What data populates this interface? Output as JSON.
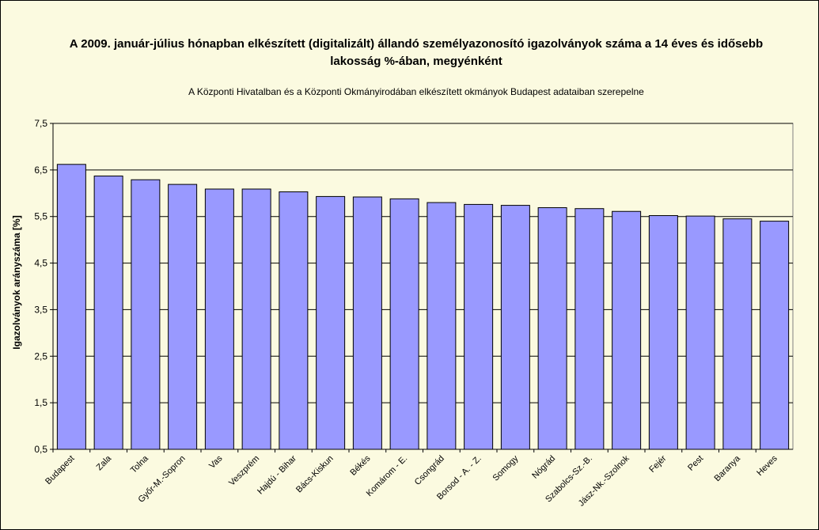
{
  "title": "A 2009. január-július hónapban elkészített (digitalizált) állandó személyazonosító igazolványok száma a 14 éves és idősebb lakosság %-ában, megyénként",
  "subtitle": "A  Központi Hivatalban és a Központi Okmányirodában elkészített  okmányok Budapest adataiban szerepelne",
  "colors": {
    "background": "#fbfae0",
    "plot": "#fbfae0",
    "bar": "#9999ff",
    "grid": "#000000"
  },
  "chart_data": {
    "type": "bar",
    "title": "A 2009. január-július hónapban elkészített (digitalizált) állandó személyazonosító igazolványok száma a 14 éves és idősebb lakosság %-ában, megyénként",
    "subtitle": "A  Központi Hivatalban és a Központi Okmányirodában elkészített  okmányok Budapest adataiban szerepelne",
    "xlabel": "",
    "ylabel": "Igazolványok arányszáma [%]",
    "ylim": [
      0.5,
      7.5
    ],
    "yticks": [
      "0,5",
      "1,5",
      "2,5",
      "3,5",
      "4,5",
      "5,5",
      "6,5",
      "7,5"
    ],
    "grid": true,
    "legend": "none",
    "categories": [
      "Budapest",
      "Zala",
      "Tolna",
      "Győr-M.-Sopron",
      "Vas",
      "Veszprém",
      "Hajdú - Bihar",
      "Bács-Kiskun",
      "Békés",
      "Komárom - E.",
      "Csongrád",
      "Borsod - A. - Z.",
      "Somogy",
      "Nógrád",
      "Szabolcs-Sz.-B.",
      "Jász-Nk.-Szolnok",
      "Fejér",
      "Pest",
      "Baranya",
      "Heves"
    ],
    "values": [
      6.62,
      6.37,
      6.29,
      6.19,
      6.09,
      6.09,
      6.03,
      5.93,
      5.92,
      5.88,
      5.8,
      5.76,
      5.74,
      5.69,
      5.67,
      5.61,
      5.52,
      5.51,
      5.45,
      5.4
    ]
  }
}
